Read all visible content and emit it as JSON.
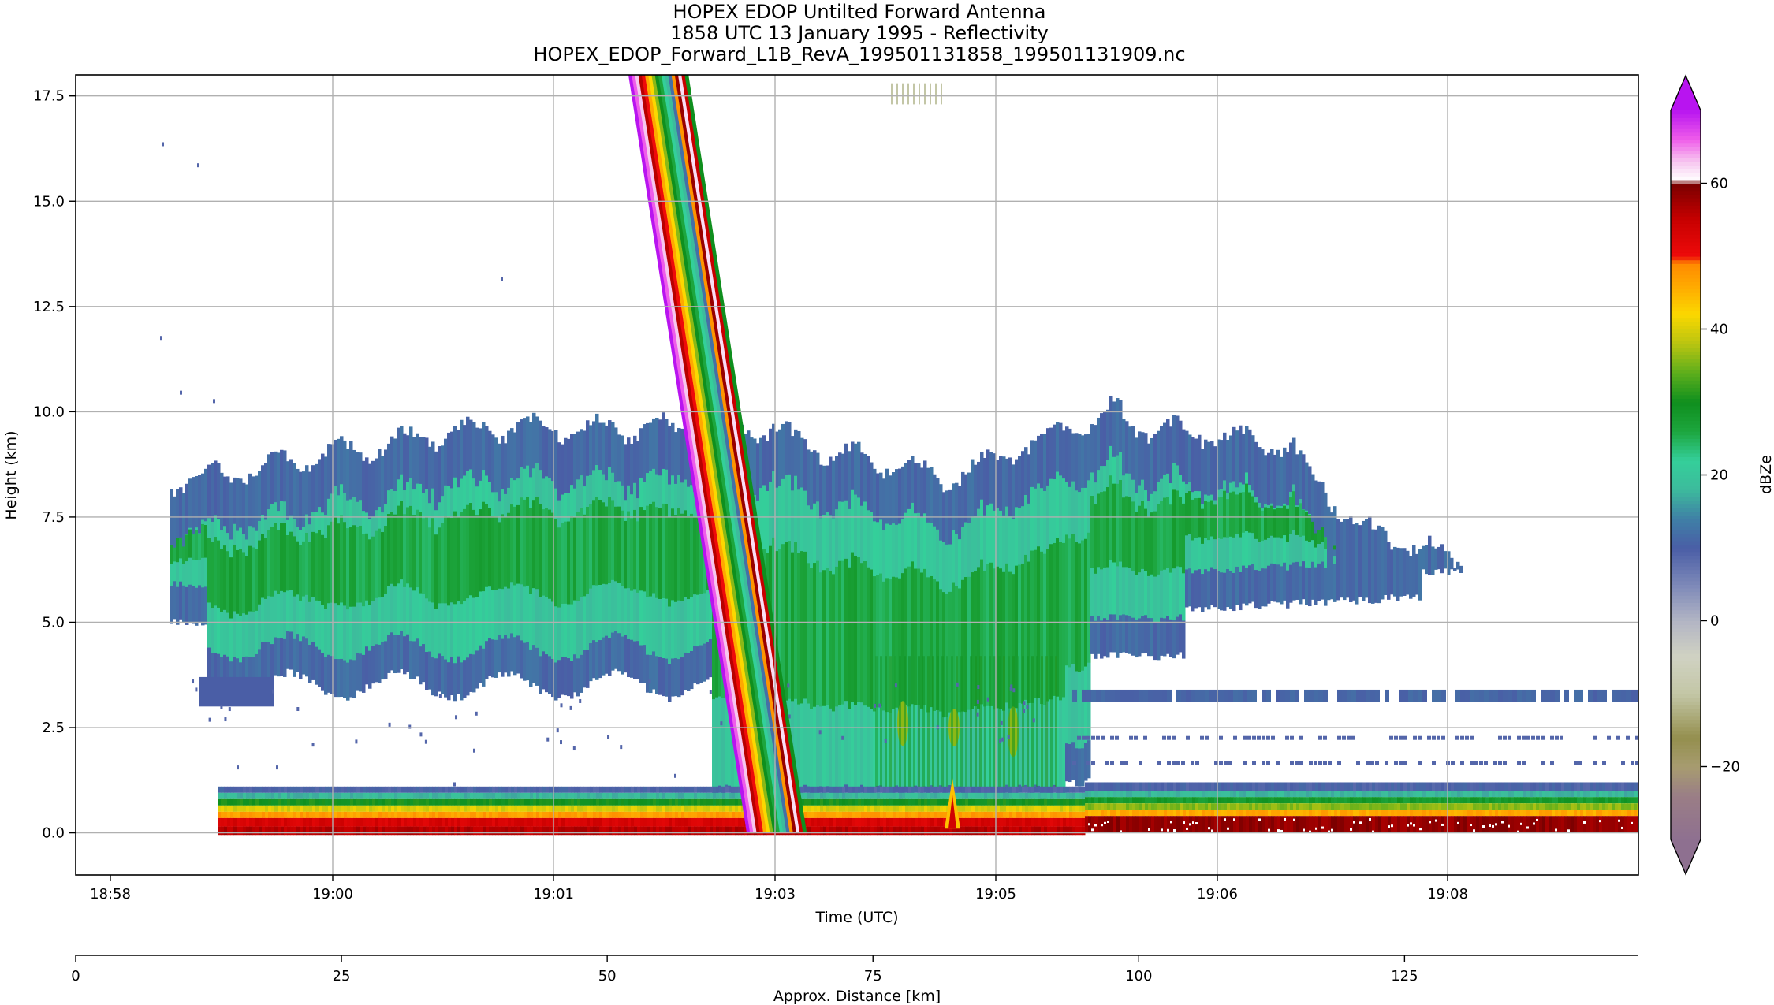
{
  "title_lines": [
    "HOPEX EDOP Untilted Forward Antenna",
    "1858 UTC 13 January 1995 - Reflectivity",
    "HOPEX_EDOP_Forward_L1B_RevA_199501131858_199501131909.nc"
  ],
  "chart_data": {
    "type": "heatmap",
    "title": "HOPEX EDOP Untilted Forward Antenna",
    "subtitle": "1858 UTC 13 January 1995 - Reflectivity",
    "filename": "HOPEX_EDOP_Forward_L1B_RevA_199501131858_199501131909.nc",
    "xlabel": "Time (UTC)",
    "ylabel": "Height (km)",
    "x_ticks": [
      "18:58",
      "19:00",
      "19:01",
      "19:03",
      "19:05",
      "19:06",
      "19:08"
    ],
    "y_ticks": [
      "0.0",
      "2.5",
      "5.0",
      "7.5",
      "10.0",
      "12.5",
      "15.0",
      "17.5"
    ],
    "y_tick_values": [
      0,
      2.5,
      5,
      7.5,
      10,
      12.5,
      15,
      17.5
    ],
    "ylim": [
      -1.0,
      18.0
    ],
    "grid": true,
    "secondary_x": {
      "label": "Approx. Distance [km]",
      "ticks": [
        "0",
        "25",
        "50",
        "75",
        "100",
        "125"
      ],
      "tick_values": [
        0,
        25,
        50,
        75,
        100,
        125
      ],
      "range": [
        0,
        147
      ]
    },
    "colorbar": {
      "label": "dBZe",
      "ticks": [
        "−20",
        "0",
        "20",
        "40",
        "60"
      ],
      "tick_values": [
        -20,
        0,
        20,
        40,
        60
      ],
      "range": [
        -30,
        70
      ],
      "extend": "both",
      "colors": [
        {
          "v": -30,
          "c": "#8e7090"
        },
        {
          "v": -24,
          "c": "#9a7e86"
        },
        {
          "v": -20,
          "c": "#a79c70"
        },
        {
          "v": -16,
          "c": "#948f4e"
        },
        {
          "v": -10,
          "c": "#c3c6a6"
        },
        {
          "v": -5,
          "c": "#d0d2c2"
        },
        {
          "v": 0,
          "c": "#b2b5c4"
        },
        {
          "v": 5,
          "c": "#7c88b8"
        },
        {
          "v": 10,
          "c": "#4a5ea6"
        },
        {
          "v": 14,
          "c": "#3f7fa6"
        },
        {
          "v": 18,
          "c": "#3dbb9c"
        },
        {
          "v": 22,
          "c": "#34cf9a"
        },
        {
          "v": 26,
          "c": "#1da63e"
        },
        {
          "v": 30,
          "c": "#0f8f1e"
        },
        {
          "v": 34,
          "c": "#5cae1c"
        },
        {
          "v": 38,
          "c": "#b8c411"
        },
        {
          "v": 42,
          "c": "#fbd800"
        },
        {
          "v": 46,
          "c": "#ffa800"
        },
        {
          "v": 49,
          "c": "#ff8a00"
        },
        {
          "v": 50,
          "c": "#ee0a0a"
        },
        {
          "v": 55,
          "c": "#c80000"
        },
        {
          "v": 60,
          "c": "#7a0000"
        },
        {
          "v": 60.5,
          "c": "#ffffff"
        },
        {
          "v": 63,
          "c": "#f7c6ef"
        },
        {
          "v": 66,
          "c": "#ef5cea"
        },
        {
          "v": 70,
          "c": "#b814f0"
        }
      ]
    }
  }
}
